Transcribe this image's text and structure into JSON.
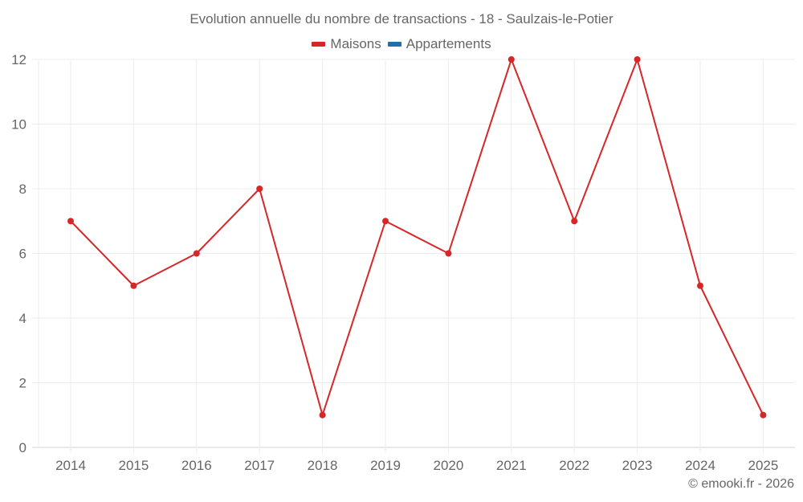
{
  "chart_data": {
    "type": "line",
    "title": "Evolution annuelle du nombre de transactions - 18 - Saulzais-le-Potier",
    "xlabel": "",
    "ylabel": "",
    "categories": [
      "2014",
      "2015",
      "2016",
      "2017",
      "2018",
      "2019",
      "2020",
      "2021",
      "2022",
      "2023",
      "2024",
      "2025"
    ],
    "series": [
      {
        "name": "Maisons",
        "color": "#d62728",
        "values": [
          7,
          5,
          6,
          8,
          1,
          7,
          6,
          12,
          7,
          12,
          5,
          1
        ]
      },
      {
        "name": "Appartements",
        "color": "#1f6fa8",
        "values": []
      }
    ],
    "ylim": [
      0,
      12
    ],
    "yticks": [
      0,
      2,
      4,
      6,
      8,
      10,
      12
    ],
    "grid": true,
    "legend_position": "top"
  },
  "legend": [
    {
      "label": "Maisons",
      "color": "#d62728"
    },
    {
      "label": "Appartements",
      "color": "#1f6fa8"
    }
  ],
  "credit": "© emooki.fr - 2026"
}
